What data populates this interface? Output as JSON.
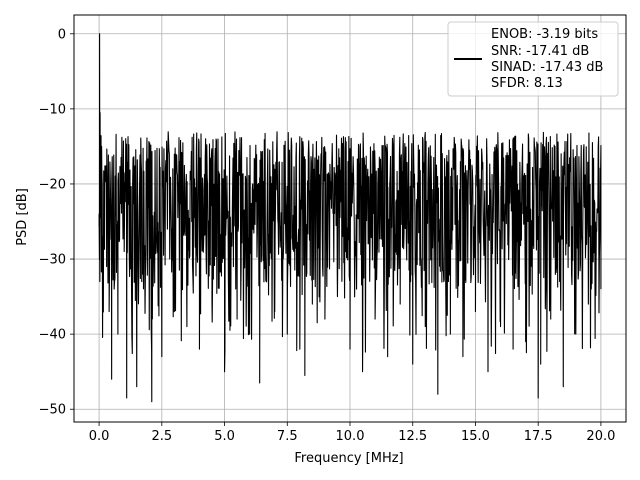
{
  "chart_data": {
    "type": "line",
    "title": "",
    "xlabel": "Frequency [MHz]",
    "ylabel": "PSD [dB]",
    "xlim": [
      -1.0,
      21.0
    ],
    "ylim": [
      -51.7,
      2.5
    ],
    "xticks": [
      0.0,
      2.5,
      5.0,
      7.5,
      10.0,
      12.5,
      15.0,
      17.5,
      20.0
    ],
    "xtick_labels": [
      "0.0",
      "2.5",
      "5.0",
      "7.5",
      "10.0",
      "12.5",
      "15.0",
      "17.5",
      "20.0"
    ],
    "yticks": [
      0,
      -10,
      -20,
      -30,
      -40,
      -50
    ],
    "ytick_labels": [
      "0",
      "−10",
      "−20",
      "−30",
      "−40",
      "−50"
    ],
    "grid": true,
    "legend_placement": "upper-right",
    "series": [
      {
        "color": "#000000",
        "x": [
          0.0,
          0.02,
          0.04,
          0.07,
          0.1,
          0.15,
          0.2,
          0.3,
          0.4,
          0.5,
          0.6,
          0.75,
          1.0,
          1.1,
          1.3,
          1.5,
          1.7,
          2.1,
          2.5,
          3.0,
          3.5,
          4.0,
          4.5,
          5.0,
          5.5,
          6.0,
          6.4,
          7.0,
          7.5,
          8.0,
          8.2,
          8.5,
          9.0,
          9.5,
          10.0,
          10.5,
          11.0,
          11.5,
          12.0,
          12.5,
          13.0,
          13.5,
          14.0,
          14.5,
          15.0,
          15.5,
          16.0,
          16.5,
          17.0,
          17.5,
          17.6,
          18.0,
          18.5,
          19.0,
          19.5,
          20.0
        ],
        "y": [
          -24.0,
          0.0,
          -10.5,
          -21.0,
          -15.0,
          -27.0,
          -23.0,
          -31.0,
          -37.0,
          -46.0,
          -34.0,
          -40.0,
          -29.0,
          -48.5,
          -37.0,
          -47.0,
          -33.0,
          -49.0,
          -43.0,
          -37.0,
          -39.0,
          -42.0,
          -36.0,
          -45.0,
          -38.0,
          -40.0,
          -46.5,
          -37.0,
          -40.0,
          -42.0,
          -45.5,
          -36.0,
          -38.0,
          -35.0,
          -42.0,
          -45.0,
          -38.0,
          -43.0,
          -36.0,
          -44.0,
          -39.0,
          -48.0,
          -40.0,
          -43.0,
          -37.0,
          -45.0,
          -39.0,
          -42.0,
          -41.0,
          -48.5,
          -44.0,
          -38.0,
          -47.0,
          -40.0,
          -36.0,
          -34.0
        ]
      }
    ],
    "legend": {
      "line_label": "",
      "lines": [
        "ENOB: -3.19 bits",
        "SNR: -17.41 dB",
        "SINAD: -17.43 dB",
        "SFDR: 8.13"
      ]
    }
  }
}
